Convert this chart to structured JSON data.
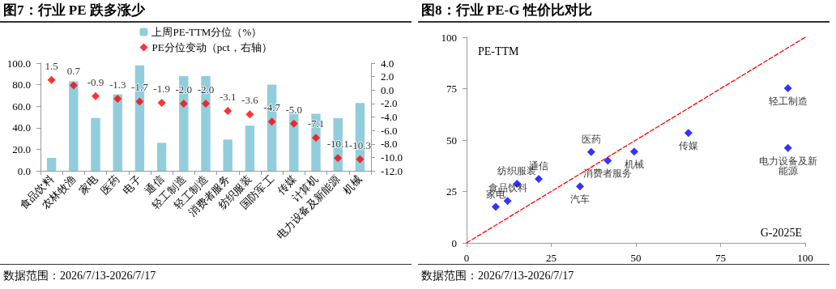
{
  "chart_data": [
    {
      "type": "bar",
      "title": "图7：行业 PE 跌多涨少",
      "categories": [
        "食品饮料",
        "农林牧渔",
        "家电",
        "医药",
        "电子",
        "通信",
        "轻工制造",
        "轻工制造",
        "消费者服务",
        "纺织服装",
        "国防军工",
        "传媒",
        "计算机",
        "电力设备及新能源",
        "机械"
      ],
      "series": [
        {
          "type": "bar",
          "name": "上周PE-TTM分位（%）",
          "color": "#92cddc",
          "values": [
            12,
            83,
            49,
            71,
            98,
            26,
            88,
            88,
            29,
            42,
            80,
            53,
            53,
            49,
            63
          ]
        },
        {
          "type": "scatter",
          "axis": "y2",
          "marker": "diamond",
          "name": "PE分位变动（pct，右轴）",
          "color": "#ff0000",
          "values": [
            1.5,
            0.7,
            -0.9,
            -1.3,
            -1.7,
            -1.9,
            -2.0,
            -2.0,
            -3.1,
            -3.6,
            -4.7,
            -5.0,
            -7.1,
            -10.1,
            -10.3
          ],
          "value_labels": [
            "1.5",
            "0.7",
            "-0.9",
            "-1.3",
            "-1.7",
            "-1.9",
            "-2.0",
            "-2.0",
            "-3.1",
            "-3.6",
            "-4.7",
            "-5.0",
            "-7.1",
            "-10.1",
            "-10.3"
          ]
        }
      ],
      "ylim": [
        0,
        100
      ],
      "yticks": [
        {
          "value": 0,
          "label": "0.0"
        },
        {
          "value": 20,
          "label": "20.0"
        },
        {
          "value": 40,
          "label": "40.0"
        },
        {
          "value": 60,
          "label": "60.0"
        },
        {
          "value": 80,
          "label": "80.0"
        },
        {
          "value": 100,
          "label": "100.0"
        }
      ],
      "y2lim": [
        -12,
        4
      ],
      "y2ticks": [
        {
          "value": -12,
          "label": "-12.0"
        },
        {
          "value": -10,
          "label": "-10.0"
        },
        {
          "value": -8,
          "label": "-8.0"
        },
        {
          "value": -6,
          "label": "-6.0"
        },
        {
          "value": -4,
          "label": "-4.0"
        },
        {
          "value": -2,
          "label": "-2.0"
        },
        {
          "value": 0,
          "label": "0.0"
        },
        {
          "value": 2,
          "label": "2.0"
        },
        {
          "value": 4,
          "label": "4.0"
        }
      ],
      "legend": "top",
      "grid": false,
      "annotations": [
        "数据范围：2026/7/13-2026/7/17"
      ]
    },
    {
      "type": "scatter",
      "title": "图8：行业 PE-G 性价比对比",
      "xlabel": "G-2025E",
      "ylabel": "PE-TTM",
      "series": [
        {
          "type": "scatter",
          "marker": "diamond",
          "color": "#0000ff",
          "x": [
            8.6,
            12.1,
            14.9,
            21.3,
            33.5,
            36.8,
            41.7,
            49.5,
            65.5,
            94.9,
            94.9
          ],
          "values": [
            17.5,
            20.4,
            28.7,
            31.1,
            27.5,
            44.2,
            40.0,
            44.4,
            53.4,
            75.2,
            46.2
          ]
        },
        {
          "type": "line",
          "marker": "none",
          "line_style": "dashed",
          "color": "#ff0000",
          "x": [
            0,
            100
          ],
          "values": [
            0,
            100
          ]
        }
      ],
      "xlim": [
        0,
        100
      ],
      "xticks": [
        0,
        25,
        50,
        75,
        100
      ],
      "ylim": [
        0,
        100
      ],
      "yticks": [
        0,
        25,
        50,
        75,
        100
      ],
      "grid": false,
      "annotations": [
        {
          "text": "家电",
          "x": 8.6,
          "y": 17.5
        },
        {
          "text": "食品饮料",
          "x": 12.1,
          "y": 20.4
        },
        {
          "text": "纺织服装",
          "x": 14.9,
          "y": 28.7
        },
        {
          "text": "通信",
          "x": 21.3,
          "y": 31.1
        },
        {
          "text": "汽车",
          "x": 33.5,
          "y": 27.5
        },
        {
          "text": "医药",
          "x": 36.8,
          "y": 44.2
        },
        {
          "text": "消费者服务",
          "x": 41.7,
          "y": 40.0
        },
        {
          "text": "机械",
          "x": 49.5,
          "y": 44.4
        },
        {
          "text": "传媒",
          "x": 65.5,
          "y": 53.4
        },
        {
          "text": "轻工制造",
          "x": 94.9,
          "y": 75.2
        },
        {
          "text": "电力设备及新能源",
          "x": 94.9,
          "y": 46.2
        },
        "数据范围：2026/7/13-2026/7/17"
      ]
    }
  ]
}
